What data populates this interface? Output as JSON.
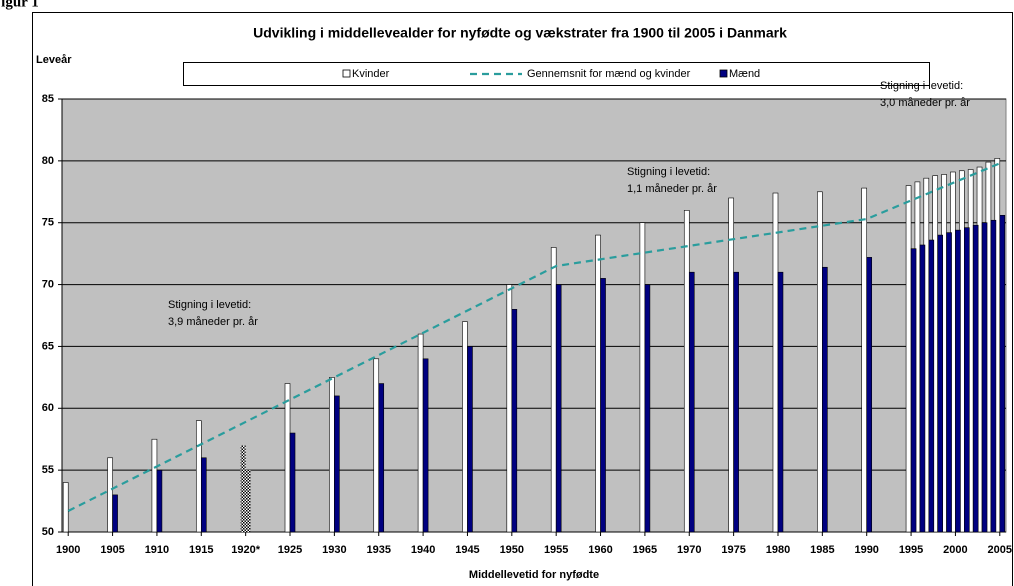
{
  "figure_label": "Figur 1",
  "chart_data": {
    "type": "bar",
    "title": "Udvikling i middellevealder for nyfødte og vækstrater fra 1900 til 2005 i Danmark",
    "y_label": "Leveår",
    "x_label": "Middellevetid for nyfødte",
    "x": [
      1900,
      1905,
      1910,
      1915,
      1920,
      1925,
      1930,
      1935,
      1940,
      1945,
      1950,
      1955,
      1960,
      1965,
      1970,
      1975,
      1980,
      1985,
      1990,
      1995,
      1996,
      1997,
      1998,
      1999,
      2000,
      2001,
      2002,
      2003,
      2004,
      2005
    ],
    "series": [
      {
        "name": "Kvinder",
        "color": "#ffffff",
        "kind": "bar",
        "values": [
          54,
          56,
          57.5,
          59,
          57,
          62,
          62.5,
          64,
          66,
          67,
          70,
          73,
          74,
          75,
          76,
          77,
          77.4,
          77.5,
          77.8,
          78,
          78.3,
          78.6,
          78.8,
          78.9,
          79.1,
          79.2,
          79.3,
          79.5,
          79.9,
          80.2
        ]
      },
      {
        "name": "Gennemsnit for mænd og kvinder",
        "color": "#2a9d9d",
        "kind": "line",
        "dashed": true,
        "x": [
          1900,
          1955,
          1990,
          2005
        ],
        "values": [
          51.7,
          71.5,
          75.3,
          79.8
        ]
      },
      {
        "name": "Mænd",
        "color": "#000080",
        "kind": "bar",
        "values": [
          null,
          53,
          55,
          56,
          55,
          58,
          61,
          62,
          64,
          65,
          68,
          70,
          70.5,
          70,
          71,
          71,
          71,
          71.4,
          72.2,
          72.9,
          73.2,
          73.6,
          74,
          74.2,
          74.4,
          74.6,
          74.8,
          75,
          75.2,
          75.6
        ]
      }
    ],
    "dotted_x": [
      1920
    ],
    "xlim": [
      1899.3,
      2005.7
    ],
    "xticks": [
      1900,
      1905,
      1910,
      1915,
      {
        "value": 1920,
        "label": "1920*"
      },
      1925,
      1930,
      1935,
      1940,
      1945,
      1950,
      1955,
      1960,
      1965,
      1970,
      1975,
      1980,
      1985,
      1990,
      1995,
      2000,
      2005
    ],
    "ylim": [
      50,
      85
    ],
    "yticks": [
      50,
      55,
      60,
      65,
      70,
      75,
      80,
      85
    ],
    "grid": true,
    "legend": "top",
    "annotations": [
      {
        "lines": [
          "Stigning i levetid:",
          "3,9 måneder pr. år"
        ]
      },
      {
        "lines": [
          "Stigning i levetid:",
          "1,1 måneder pr. år"
        ]
      },
      {
        "lines": [
          "Stigning i levetid:",
          "3,0 måneder pr. år"
        ]
      }
    ]
  }
}
